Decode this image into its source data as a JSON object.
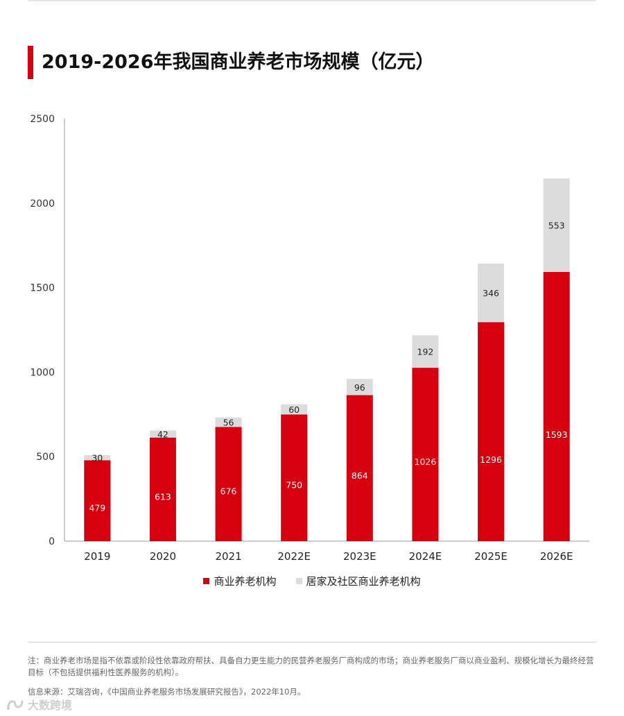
{
  "title": "2019-2026年我国商业养老市场规模（亿元）",
  "colors": {
    "accent": "#d7000f",
    "series_primary": "#d7000f",
    "series_secondary": "#dcdcdc",
    "axis": "#999999"
  },
  "chart_data": {
    "type": "bar",
    "stacked": true,
    "title": "2019-2026年我国商业养老市场规模（亿元）",
    "xlabel": "",
    "ylabel": "",
    "categories": [
      "2019",
      "2020",
      "2021",
      "2022E",
      "2023E",
      "2024E",
      "2025E",
      "2026E"
    ],
    "ylim": [
      0,
      2500
    ],
    "yticks": [
      0,
      500,
      1000,
      1500,
      2000,
      2500
    ],
    "grid": false,
    "legend_position": "bottom-center",
    "series": [
      {
        "name": "商业养老机构",
        "color": "#d7000f",
        "label_color": "#ffffff",
        "values": [
          479,
          613,
          676,
          750,
          864,
          1026,
          1296,
          1593
        ]
      },
      {
        "name": "居家及社区商业养老机构",
        "color": "#dcdcdc",
        "label_color": "#222222",
        "values": [
          30,
          42,
          56,
          60,
          96,
          192,
          346,
          553
        ]
      }
    ]
  },
  "legend": {
    "items": [
      {
        "label": "商业养老机构",
        "color": "#d7000f"
      },
      {
        "label": "居家及社区商业养老机构",
        "color": "#dcdcdc"
      }
    ]
  },
  "footer": {
    "note": "注：商业养老市场是指不依靠或阶段性依靠政府帮扶、具备自力更生能力的民营养老服务厂商构成的市场；商业养老服务厂商以商业盈利、规模化增长为最终经营目标（不包括提供福利性医养服务的机构）。",
    "source": "信息来源：艾瑞咨询，《中国商业养老服务市场发展研究报告》，2022年10月。"
  },
  "watermark": {
    "text": "大数跨境"
  }
}
